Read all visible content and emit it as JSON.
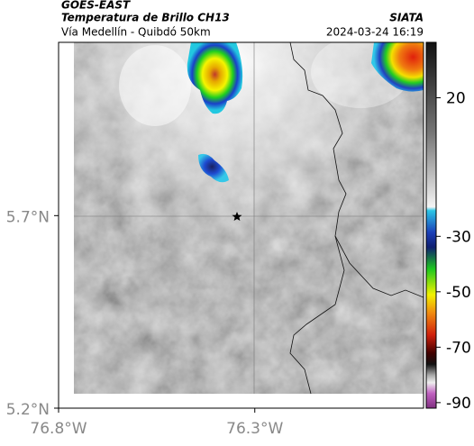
{
  "header": {
    "title": "GOES-EAST",
    "subtitle": "Temperatura de Brillo CH13",
    "region": "Vía Medellín - Quibdó 50km",
    "source": "SIATA",
    "timestamp": "2024-03-24 16:19"
  },
  "map": {
    "xlim": [
      -76.8,
      -75.87
    ],
    "ylim": [
      5.2,
      6.15
    ],
    "xticks": [
      {
        "value": -76.8,
        "label": "76.8°W"
      },
      {
        "value": -76.3,
        "label": "76.3°W"
      }
    ],
    "yticks": [
      {
        "value": 5.7,
        "label": "5.7°N"
      },
      {
        "value": 5.2,
        "label": "5.2°N"
      }
    ]
  },
  "colorbar": {
    "lim": [
      40,
      -92
    ],
    "ticks": [
      20,
      -30,
      -50,
      -70,
      -90
    ]
  }
}
